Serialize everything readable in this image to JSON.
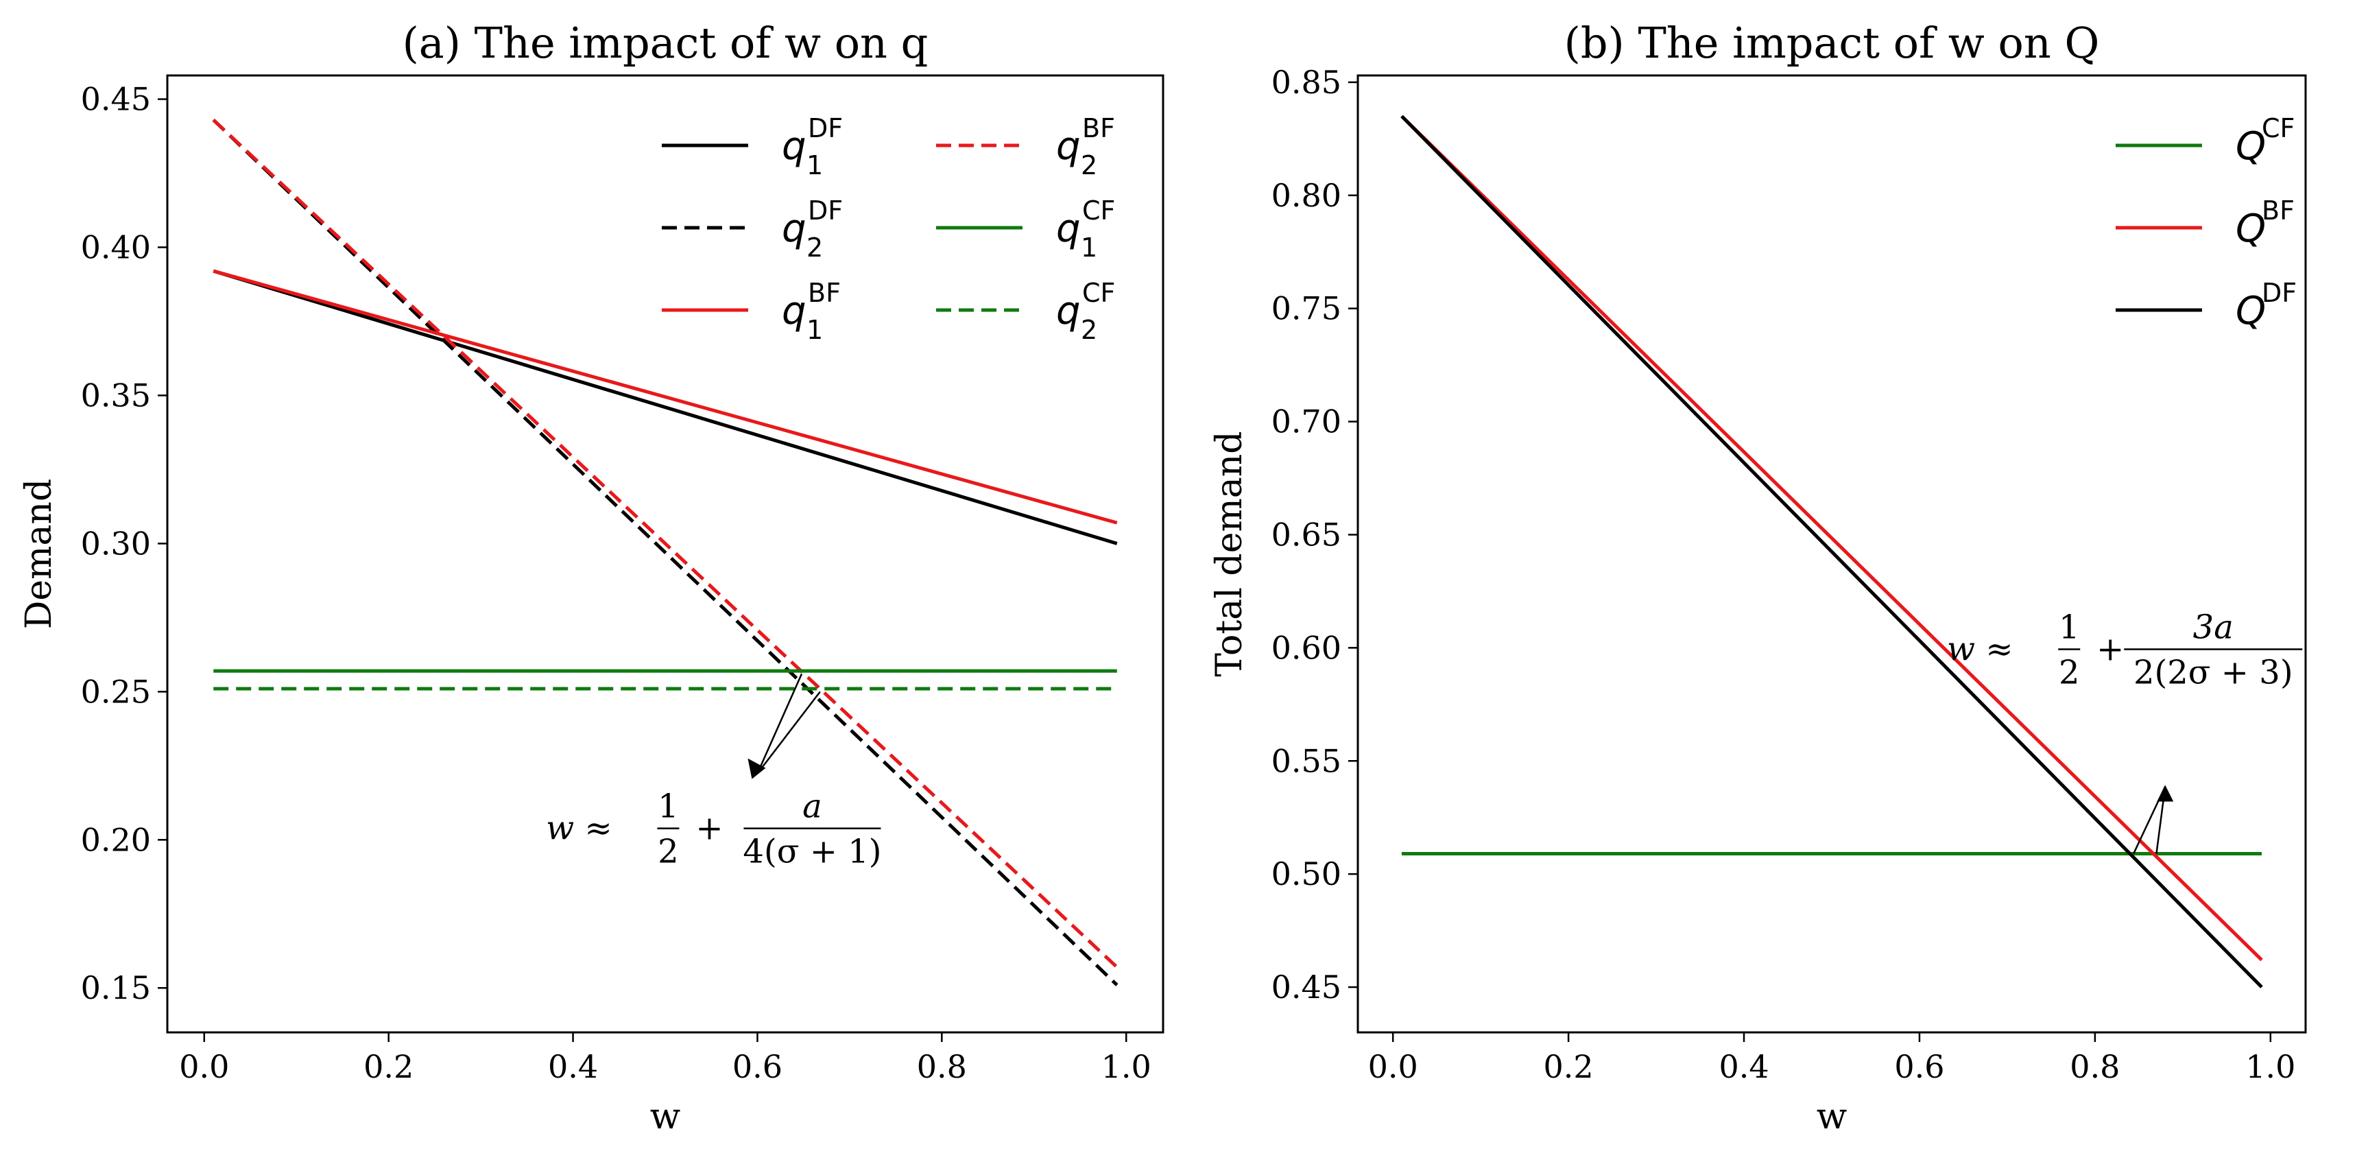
{
  "chart_data": [
    {
      "type": "line",
      "title": "(a) The impact of w on q",
      "xlabel": "w",
      "ylabel": "Demand",
      "xlim": [
        -0.04,
        1.04
      ],
      "ylim": [
        0.135,
        0.458
      ],
      "xticks": [
        "0.0",
        "0.2",
        "0.4",
        "0.6",
        "0.8",
        "1.0"
      ],
      "yticks": [
        "0.15",
        "0.20",
        "0.25",
        "0.30",
        "0.35",
        "0.40",
        "0.45"
      ],
      "legend_position": "top-right",
      "series": [
        {
          "key": "q1DF",
          "base": "q",
          "sub": "1",
          "sup": "DF",
          "color": "#000000",
          "dash": "solid",
          "x": [
            0.01,
            0.99
          ],
          "y": [
            0.392,
            0.3
          ]
        },
        {
          "key": "q2DF",
          "base": "q",
          "sub": "2",
          "sup": "DF",
          "color": "#000000",
          "dash": "dashed",
          "x": [
            0.01,
            0.99
          ],
          "y": [
            0.443,
            0.151
          ]
        },
        {
          "key": "q1BF",
          "base": "q",
          "sub": "1",
          "sup": "BF",
          "color": "#e8191b",
          "dash": "solid",
          "x": [
            0.01,
            0.99
          ],
          "y": [
            0.392,
            0.307
          ]
        },
        {
          "key": "q2BF",
          "base": "q",
          "sub": "2",
          "sup": "BF",
          "color": "#e8191b",
          "dash": "dashed",
          "x": [
            0.01,
            0.99
          ],
          "y": [
            0.443,
            0.157
          ]
        },
        {
          "key": "q1CF",
          "base": "q",
          "sub": "1",
          "sup": "CF",
          "color": "#0f7a0f",
          "dash": "solid",
          "x": [
            0.01,
            0.99
          ],
          "y": [
            0.257,
            0.257
          ]
        },
        {
          "key": "q2CF",
          "base": "q",
          "sub": "2",
          "sup": "CF",
          "color": "#0f7a0f",
          "dash": "dashed",
          "x": [
            0.01,
            0.99
          ],
          "y": [
            0.251,
            0.251
          ]
        }
      ],
      "annotation": {
        "lhs": "w ≈",
        "frac1_num": "1",
        "frac1_den": "2",
        "plus": "+",
        "frac2_num": "a",
        "frac2_den": "4(σ + 1)",
        "points": [
          [
            0.648,
            0.256
          ],
          [
            0.668,
            0.25
          ]
        ],
        "text_xy": [
          0.6,
          0.227
        ]
      }
    },
    {
      "type": "line",
      "title": "(b) The impact of w on Q",
      "xlabel": "w",
      "ylabel": "Total demand",
      "xlim": [
        -0.04,
        1.04
      ],
      "ylim": [
        0.43,
        0.853
      ],
      "xticks": [
        "0.0",
        "0.2",
        "0.4",
        "0.6",
        "0.8",
        "1.0"
      ],
      "yticks": [
        "0.45",
        "0.50",
        "0.55",
        "0.60",
        "0.65",
        "0.70",
        "0.75",
        "0.80",
        "0.85"
      ],
      "legend_position": "top-right",
      "series": [
        {
          "key": "QCF",
          "base": "Q",
          "sup": "CF",
          "color": "#0f7a0f",
          "dash": "solid",
          "x": [
            0.01,
            0.99
          ],
          "y": [
            0.509,
            0.509
          ]
        },
        {
          "key": "QBF",
          "base": "Q",
          "sup": "BF",
          "color": "#e8191b",
          "dash": "solid",
          "x": [
            0.01,
            0.99
          ],
          "y": [
            0.835,
            0.462
          ]
        },
        {
          "key": "QDF",
          "base": "Q",
          "sup": "DF",
          "color": "#000000",
          "dash": "solid",
          "x": [
            0.01,
            0.99
          ],
          "y": [
            0.835,
            0.45
          ]
        }
      ],
      "annotation": {
        "lhs": "w ≈",
        "frac1_num": "1",
        "frac1_den": "2",
        "plus": "+",
        "frac2_num": "3a",
        "frac2_den": "2(2σ + 3)",
        "points": [
          [
            0.844,
            0.509
          ],
          [
            0.87,
            0.509
          ]
        ],
        "text_xy": [
          0.88,
          0.566
        ]
      }
    }
  ]
}
